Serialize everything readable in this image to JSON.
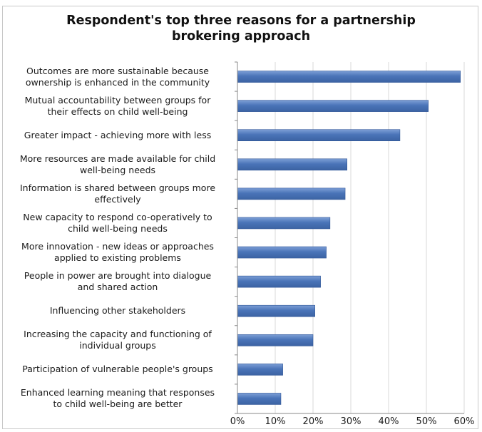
{
  "chart_data": {
    "type": "bar",
    "orientation": "horizontal",
    "title": "Respondent's top three reasons for a partnership\nbrokering approach",
    "categories": [
      "Outcomes are more sustainable because\nownership is enhanced in the community",
      "Mutual accountability between groups for\ntheir effects on child well-being",
      "Greater impact - achieving more with less",
      "More resources are made available for child\nwell-being needs",
      "Information is shared between groups more\neffectively",
      "New capacity to respond co-operatively to\nchild well-being needs",
      "More innovation - new ideas or approaches\napplied to existing problems",
      "People in power are brought into dialogue\nand shared action",
      "Influencing other stakeholders",
      "Increasing the capacity and functioning of\nindividual groups",
      "Participation of vulnerable people's groups",
      "Enhanced learning meaning that responses\nto child well-being are better"
    ],
    "values": [
      59,
      50.5,
      43,
      29,
      28.5,
      24.5,
      23.5,
      22,
      20.5,
      20,
      12,
      11.5
    ],
    "xlim": [
      0,
      60
    ],
    "x_ticks": [
      "0%",
      "10%",
      "20%",
      "30%",
      "40%",
      "50%",
      "60%"
    ],
    "x_tick_values": [
      0,
      10,
      20,
      30,
      40,
      50,
      60
    ],
    "grid": "vertical gridlines",
    "legend": "none",
    "colors": {
      "bar_fill": "#4a74b8",
      "bar_highlight": "#7d9fd6",
      "bar_edge": "#2f5597",
      "grid": "#d9d9d9",
      "axis": "#888888"
    }
  }
}
